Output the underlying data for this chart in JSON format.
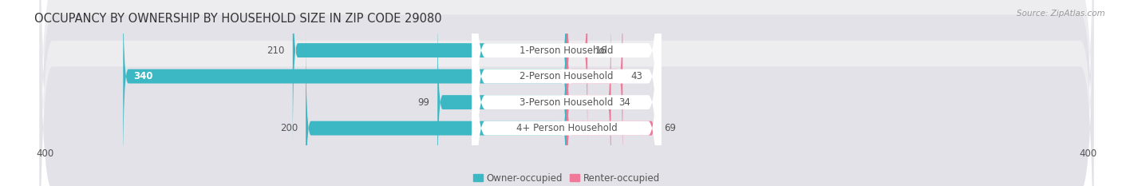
{
  "title": "OCCUPANCY BY OWNERSHIP BY HOUSEHOLD SIZE IN ZIP CODE 29080",
  "source": "Source: ZipAtlas.com",
  "categories": [
    "1-Person Household",
    "2-Person Household",
    "3-Person Household",
    "4+ Person Household"
  ],
  "owner_values": [
    210,
    340,
    99,
    200
  ],
  "renter_values": [
    16,
    43,
    34,
    69
  ],
  "owner_color": "#3BB8C3",
  "renter_color": "#F07898",
  "row_bg_color_odd": "#EDEDF0",
  "row_bg_color_even": "#E2E2E8",
  "axis_max": 400,
  "label_fontsize": 8.5,
  "title_fontsize": 10.5,
  "legend_label_owner": "Owner-occupied",
  "legend_label_renter": "Renter-occupied",
  "background_color": "#FFFFFF",
  "text_color": "#555555",
  "source_color": "#999999",
  "pill_color": "#FFFFFF",
  "pill_text_color": "#555555"
}
